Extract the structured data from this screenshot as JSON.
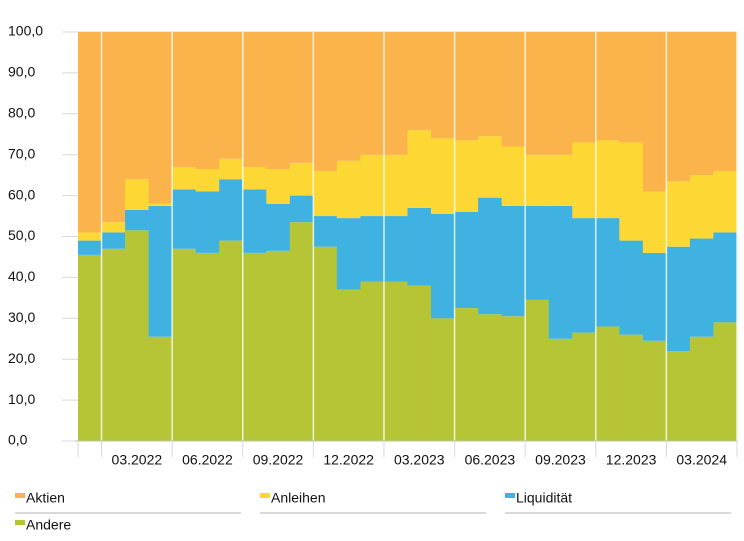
{
  "chart_data": {
    "type": "stacked_bar",
    "categories": [
      null,
      null,
      null,
      "03.2022",
      null,
      null,
      "06.2022",
      null,
      null,
      "09.2022",
      null,
      null,
      "12.2022",
      null,
      null,
      "03.2023",
      null,
      null,
      "06.2023",
      null,
      null,
      "09.2023",
      null,
      null,
      "12.2023",
      null,
      null,
      "03.2024"
    ],
    "series": [
      {
        "name": "Aktien",
        "color": "#fbb34c",
        "values": [
          49,
          46.5,
          36,
          42,
          33,
          33.5,
          31,
          33,
          33.5,
          32,
          34,
          31.5,
          30,
          30,
          24,
          26,
          26.5,
          25.5,
          28,
          30,
          30,
          27,
          26.5,
          27,
          39,
          36.5,
          35,
          34
        ]
      },
      {
        "name": "Anleihen",
        "color": "#fdd733",
        "values": [
          2,
          2.5,
          7.5,
          0.5,
          5.5,
          5.5,
          5,
          5.5,
          8.5,
          8,
          11,
          14,
          15,
          15,
          19,
          18.5,
          17.5,
          15,
          14.5,
          12.5,
          12.5,
          18.5,
          19,
          24,
          15,
          16,
          15.5,
          15
        ]
      },
      {
        "name": "Liquidität",
        "color": "#3fb2e2",
        "values": [
          3.5,
          4,
          5,
          32,
          14.5,
          15,
          15,
          15.5,
          11.5,
          6.5,
          7.5,
          17.5,
          16,
          16,
          19,
          25.5,
          23.5,
          28.5,
          27,
          23,
          32.5,
          28,
          26.5,
          23,
          21.5,
          25.5,
          24,
          22
        ]
      },
      {
        "name": "Andere",
        "color": "#b6c535",
        "values": [
          45.5,
          47,
          51.5,
          25.5,
          47,
          46,
          49,
          46,
          46.5,
          53.5,
          47.5,
          37,
          39,
          39,
          38,
          30,
          32.5,
          31,
          30.5,
          34.5,
          25,
          26.5,
          28,
          26,
          24.5,
          22,
          25.5,
          29
        ]
      }
    ],
    "ylim": [
      0,
      100
    ],
    "yticks": [
      {
        "value": 0,
        "label": "0,0"
      },
      {
        "value": 10,
        "label": "10,0"
      },
      {
        "value": 20,
        "label": "20,0"
      },
      {
        "value": 30,
        "label": "30,0"
      },
      {
        "value": 40,
        "label": "40,0"
      },
      {
        "value": 50,
        "label": "50,0"
      },
      {
        "value": 60,
        "label": "60,0"
      },
      {
        "value": 70,
        "label": "70,0"
      },
      {
        "value": 80,
        "label": "80,0"
      },
      {
        "value": 90,
        "label": "90,0"
      },
      {
        "value": 100,
        "label": "100,0"
      }
    ],
    "grid": true
  }
}
